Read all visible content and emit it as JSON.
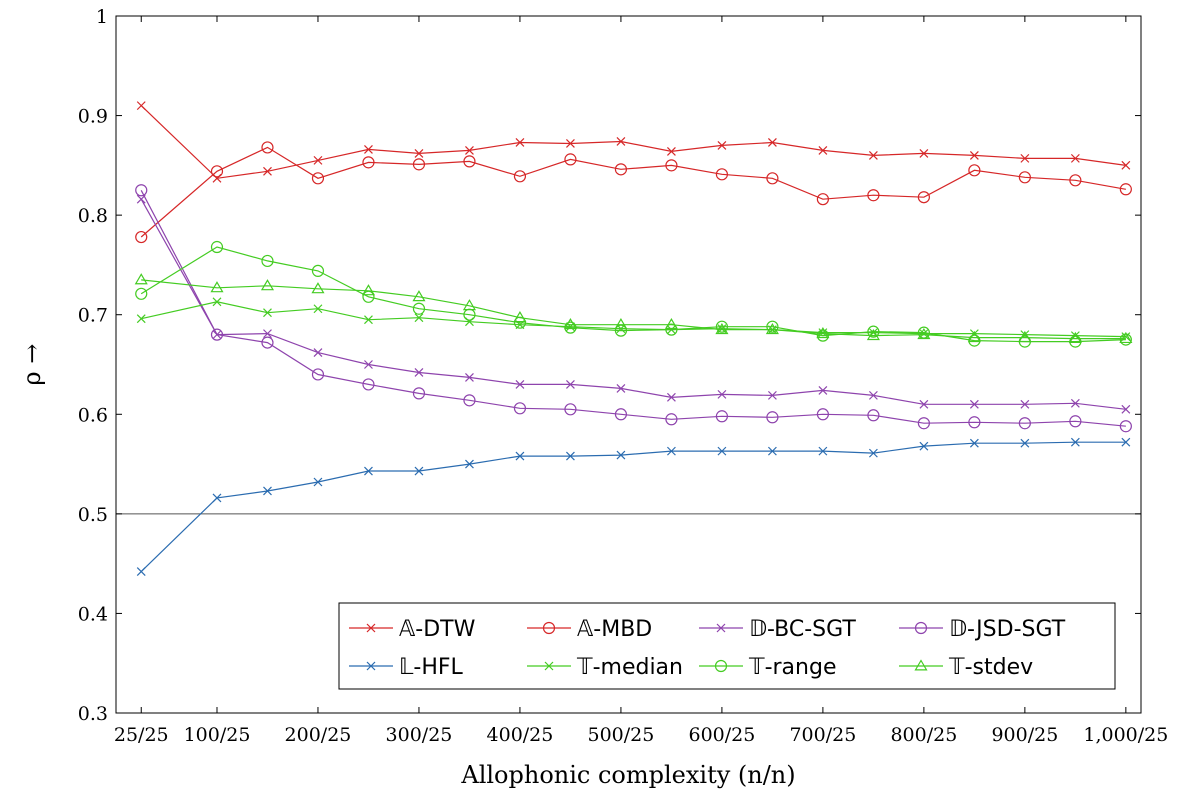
{
  "chart_data": {
    "type": "line",
    "xlabel": "Allophonic complexity (n/n)",
    "ylabel": "ρ →",
    "ylim": [
      0.3,
      1.0
    ],
    "y_ticks": [
      "0.3",
      "0.4",
      "0.5",
      "0.6",
      "0.7",
      "0.8",
      "0.9",
      "1"
    ],
    "x_ticks": [
      "25/25",
      "100/25",
      "200/25",
      "300/25",
      "400/25",
      "500/25",
      "600/25",
      "700/25",
      "800/25",
      "900/25",
      "1,000/25"
    ],
    "x_tick_values": [
      1,
      4,
      8,
      12,
      16,
      20,
      24,
      28,
      32,
      36,
      40
    ],
    "reference_line": 0.5,
    "legend_position": "bottom-right",
    "series": [
      {
        "name": "𝔸-DTW",
        "color": "#d62728",
        "marker": "x",
        "x": [
          1,
          4,
          6,
          8,
          10,
          12,
          14,
          16,
          18,
          20,
          22,
          24,
          26,
          28,
          30,
          32,
          34,
          36,
          38,
          40
        ],
        "y": [
          0.91,
          0.837,
          0.844,
          0.855,
          0.866,
          0.862,
          0.865,
          0.873,
          0.872,
          0.874,
          0.864,
          0.87,
          0.873,
          0.865,
          0.86,
          0.862,
          0.86,
          0.857,
          0.857,
          0.85
        ]
      },
      {
        "name": "𝔸-MBD",
        "color": "#d62728",
        "marker": "o",
        "x": [
          1,
          4,
          6,
          8,
          10,
          12,
          14,
          16,
          18,
          20,
          22,
          24,
          26,
          28,
          30,
          32,
          34,
          36,
          38,
          40
        ],
        "y": [
          0.778,
          0.844,
          0.868,
          0.837,
          0.853,
          0.851,
          0.854,
          0.839,
          0.856,
          0.846,
          0.85,
          0.841,
          0.837,
          0.816,
          0.82,
          0.818,
          0.845,
          0.838,
          0.835,
          0.826
        ]
      },
      {
        "name": "𝔻-BC-SGT",
        "color": "#8e44ad",
        "marker": "x",
        "x": [
          1,
          4,
          6,
          8,
          10,
          12,
          14,
          16,
          18,
          20,
          22,
          24,
          26,
          28,
          30,
          32,
          34,
          36,
          38,
          40
        ],
        "y": [
          0.816,
          0.68,
          0.681,
          0.662,
          0.65,
          0.642,
          0.637,
          0.63,
          0.63,
          0.626,
          0.617,
          0.62,
          0.619,
          0.624,
          0.619,
          0.61,
          0.61,
          0.61,
          0.611,
          0.605
        ]
      },
      {
        "name": "𝔻-JSD-SGT",
        "color": "#8e44ad",
        "marker": "o",
        "x": [
          1,
          4,
          6,
          8,
          10,
          12,
          14,
          16,
          18,
          20,
          22,
          24,
          26,
          28,
          30,
          32,
          34,
          36,
          38,
          40
        ],
        "y": [
          0.825,
          0.68,
          0.672,
          0.64,
          0.63,
          0.621,
          0.614,
          0.606,
          0.605,
          0.6,
          0.595,
          0.598,
          0.597,
          0.6,
          0.599,
          0.591,
          0.592,
          0.591,
          0.593,
          0.588
        ]
      },
      {
        "name": "𝕃-HFL",
        "color": "#2b6cb0",
        "marker": "x",
        "x": [
          1,
          4,
          6,
          8,
          10,
          12,
          14,
          16,
          18,
          20,
          22,
          24,
          26,
          28,
          30,
          32,
          34,
          36,
          38,
          40
        ],
        "y": [
          0.442,
          0.516,
          0.523,
          0.532,
          0.543,
          0.543,
          0.55,
          0.558,
          0.558,
          0.559,
          0.563,
          0.563,
          0.563,
          0.563,
          0.561,
          0.568,
          0.571,
          0.571,
          0.572,
          0.572
        ]
      },
      {
        "name": "𝕋-median",
        "color": "#44cc22",
        "marker": "x",
        "x": [
          1,
          4,
          6,
          8,
          10,
          12,
          14,
          16,
          18,
          20,
          22,
          24,
          26,
          28,
          30,
          32,
          34,
          36,
          38,
          40
        ],
        "y": [
          0.696,
          0.713,
          0.702,
          0.706,
          0.695,
          0.697,
          0.693,
          0.69,
          0.688,
          0.686,
          0.685,
          0.686,
          0.685,
          0.682,
          0.682,
          0.681,
          0.681,
          0.68,
          0.679,
          0.678
        ]
      },
      {
        "name": "𝕋-range",
        "color": "#44cc22",
        "marker": "o",
        "x": [
          1,
          4,
          6,
          8,
          10,
          12,
          14,
          16,
          18,
          20,
          22,
          24,
          26,
          28,
          30,
          32,
          34,
          36,
          38,
          40
        ],
        "y": [
          0.721,
          0.768,
          0.754,
          0.744,
          0.718,
          0.706,
          0.7,
          0.692,
          0.687,
          0.684,
          0.685,
          0.688,
          0.688,
          0.679,
          0.683,
          0.682,
          0.674,
          0.673,
          0.673,
          0.675
        ]
      },
      {
        "name": "𝕋-stdev",
        "color": "#44cc22",
        "marker": "^",
        "x": [
          1,
          4,
          6,
          8,
          10,
          12,
          14,
          16,
          18,
          20,
          22,
          24,
          26,
          28,
          30,
          32,
          34,
          36,
          38,
          40
        ],
        "y": [
          0.735,
          0.727,
          0.729,
          0.726,
          0.724,
          0.718,
          0.709,
          0.697,
          0.69,
          0.69,
          0.69,
          0.685,
          0.685,
          0.681,
          0.679,
          0.68,
          0.677,
          0.677,
          0.676,
          0.676
        ]
      }
    ]
  }
}
